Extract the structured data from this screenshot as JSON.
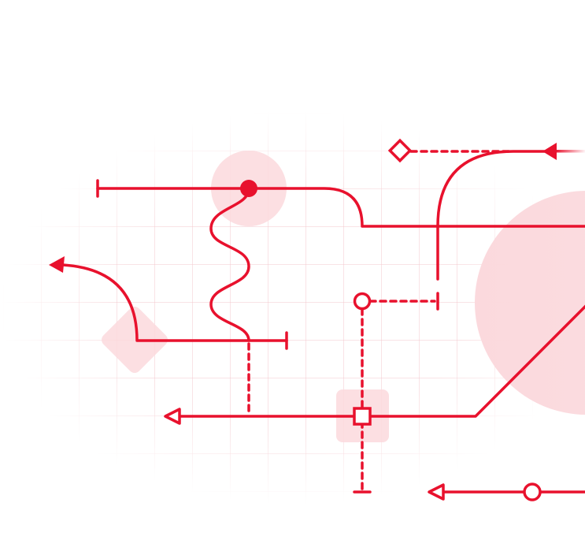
{
  "colors": {
    "line": "#e8112d",
    "highlight": "#fbd9dd",
    "grid": "#f3c7cc",
    "background": "#ffffff"
  },
  "icons": [
    "filled-circle-node",
    "hollow-circle-node",
    "hollow-diamond-node",
    "hollow-square-node",
    "filled-arrowhead",
    "hollow-arrowhead",
    "end-cap-bar"
  ]
}
